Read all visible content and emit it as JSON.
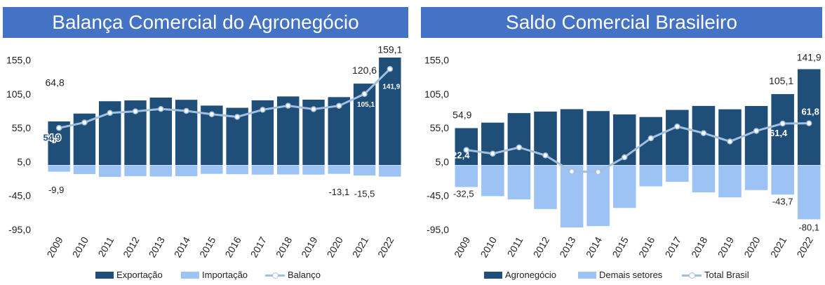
{
  "chart_data": [
    {
      "type": "bar",
      "title": "Balança Comercial do Agronegócio",
      "categories": [
        "2009",
        "2010",
        "2011",
        "2012",
        "2013",
        "2014",
        "2015",
        "2016",
        "2017",
        "2018",
        "2019",
        "2020",
        "2021",
        "2022"
      ],
      "series": [
        {
          "name": "Exportação",
          "kind": "bar",
          "color": "#1f4e79",
          "values": [
            64.8,
            76.4,
            94.6,
            95.8,
            100.0,
            96.7,
            88.2,
            84.9,
            96.0,
            101.7,
            96.9,
            100.7,
            120.6,
            159.1
          ]
        },
        {
          "name": "Importação",
          "kind": "bar",
          "color": "#9dc3f5",
          "values": [
            -9.9,
            -13.4,
            -17.5,
            -16.4,
            -17.1,
            -16.6,
            -13.1,
            -13.6,
            -14.2,
            -14.0,
            -14.2,
            -13.1,
            -15.5,
            -17.2
          ]
        },
        {
          "name": "Balanço",
          "kind": "line",
          "color": "#a3bfdf",
          "values": [
            54.9,
            63.0,
            77.1,
            79.4,
            82.9,
            80.1,
            75.1,
            71.3,
            81.8,
            87.7,
            82.7,
            87.6,
            105.1,
            141.9
          ]
        }
      ],
      "ylim": [
        -95,
        165
      ],
      "yticks": [
        "155,0",
        "105,0",
        "55,0",
        "5,0",
        "-45,0",
        "-95,0"
      ],
      "ytick_values": [
        155,
        105,
        55,
        5,
        -45,
        -95
      ],
      "labels": [
        {
          "text": "64,8"
        },
        {
          "text": "54,9"
        },
        {
          "text": "-9,9"
        },
        {
          "text": "-13,1"
        },
        {
          "text": "120,6"
        },
        {
          "text": "105,1"
        },
        {
          "text": "-15,5"
        },
        {
          "text": "159,1"
        },
        {
          "text": "141,9"
        }
      ],
      "legend": "bottom"
    },
    {
      "type": "bar",
      "title": "Saldo Comercial Brasileiro",
      "categories": [
        "2009",
        "2010",
        "2011",
        "2012",
        "2013",
        "2014",
        "2015",
        "2016",
        "2017",
        "2018",
        "2019",
        "2020",
        "2021",
        "2022"
      ],
      "series": [
        {
          "name": "Agronegócio",
          "kind": "bar",
          "color": "#1f4e79",
          "values": [
            54.9,
            63.0,
            77.1,
            79.4,
            82.9,
            80.1,
            75.1,
            71.3,
            81.8,
            87.7,
            82.7,
            87.6,
            105.1,
            141.9
          ]
        },
        {
          "name": "Demais setores",
          "kind": "bar",
          "color": "#9dc3f5",
          "values": [
            -32.5,
            -46.0,
            -50.9,
            -65.0,
            -92.2,
            -90.2,
            -63.4,
            -31.6,
            -24.8,
            -40.4,
            -47.8,
            -37.0,
            -43.7,
            -80.1
          ]
        },
        {
          "name": "Total Brasil",
          "kind": "line",
          "color": "#a3bfdf",
          "values": [
            22.4,
            17.0,
            26.2,
            14.4,
            -9.3,
            -10.1,
            11.7,
            39.7,
            57.0,
            47.3,
            35.0,
            50.6,
            61.4,
            61.8
          ]
        }
      ],
      "ylim": [
        -95,
        165
      ],
      "yticks": [
        "155,0",
        "105,0",
        "55,0",
        "5,0",
        "-45,0",
        "-95,0"
      ],
      "ytick_values": [
        155,
        105,
        55,
        5,
        -45,
        -95
      ],
      "labels": [
        {
          "text": "54,9"
        },
        {
          "text": "22,4"
        },
        {
          "text": "-32,5"
        },
        {
          "text": "105,1"
        },
        {
          "text": "61,4"
        },
        {
          "text": "-43,7"
        },
        {
          "text": "141,9"
        },
        {
          "text": "61,8"
        },
        {
          "text": "-80,1"
        }
      ],
      "legend": "bottom"
    }
  ]
}
